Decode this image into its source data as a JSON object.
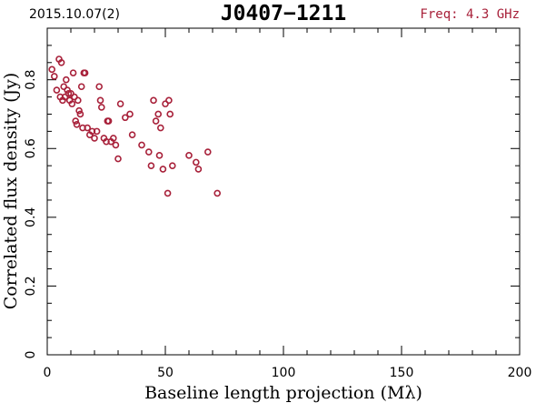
{
  "header": {
    "date": "2015.10.07(2)",
    "source": "J0407−1211",
    "freq": "Freq: 4.3 GHz"
  },
  "colors": {
    "points": "#a8213a",
    "freq_text": "#a8213a",
    "axes": "#000000"
  },
  "chart_data": {
    "type": "scatter",
    "xlabel": "Baseline length projection (Mλ)",
    "ylabel": "Correlated flux density (Jy)",
    "xlim": [
      0,
      200
    ],
    "ylim": [
      0,
      0.95
    ],
    "xticks": [
      0,
      50,
      100,
      150,
      200
    ],
    "xtick_labels": [
      "0",
      "50",
      "100",
      "150",
      "200"
    ],
    "yticks": [
      0,
      0.2,
      0.4,
      0.6,
      0.8
    ],
    "ytick_labels": [
      "0",
      "0.2",
      "0.4",
      "0.6",
      "0.8"
    ],
    "grid": false,
    "marker": "open-circle",
    "points": [
      [
        2,
        0.83
      ],
      [
        3,
        0.81
      ],
      [
        4,
        0.77
      ],
      [
        5,
        0.86
      ],
      [
        5.5,
        0.75
      ],
      [
        6,
        0.85
      ],
      [
        6.5,
        0.74
      ],
      [
        7,
        0.78
      ],
      [
        7.5,
        0.75
      ],
      [
        8,
        0.8
      ],
      [
        8.5,
        0.77
      ],
      [
        9,
        0.76
      ],
      [
        9.5,
        0.74
      ],
      [
        10,
        0.76
      ],
      [
        10.5,
        0.73
      ],
      [
        11,
        0.82
      ],
      [
        11.5,
        0.75
      ],
      [
        12,
        0.68
      ],
      [
        12.5,
        0.67
      ],
      [
        13,
        0.74
      ],
      [
        13.5,
        0.71
      ],
      [
        14,
        0.7
      ],
      [
        14.5,
        0.78
      ],
      [
        15,
        0.66
      ],
      [
        15.5,
        0.82
      ],
      [
        16,
        0.82
      ],
      [
        17,
        0.66
      ],
      [
        18,
        0.64
      ],
      [
        19,
        0.65
      ],
      [
        20,
        0.63
      ],
      [
        21,
        0.65
      ],
      [
        22,
        0.78
      ],
      [
        22.5,
        0.74
      ],
      [
        23,
        0.72
      ],
      [
        24,
        0.63
      ],
      [
        25,
        0.62
      ],
      [
        25.5,
        0.68
      ],
      [
        26,
        0.68
      ],
      [
        27,
        0.62
      ],
      [
        28,
        0.63
      ],
      [
        29,
        0.61
      ],
      [
        30,
        0.57
      ],
      [
        31,
        0.73
      ],
      [
        33,
        0.69
      ],
      [
        35,
        0.7
      ],
      [
        36,
        0.64
      ],
      [
        40,
        0.61
      ],
      [
        43,
        0.59
      ],
      [
        44,
        0.55
      ],
      [
        45,
        0.74
      ],
      [
        46,
        0.68
      ],
      [
        47,
        0.7
      ],
      [
        47.5,
        0.58
      ],
      [
        48,
        0.66
      ],
      [
        49,
        0.54
      ],
      [
        50,
        0.73
      ],
      [
        51,
        0.47
      ],
      [
        51.5,
        0.74
      ],
      [
        52,
        0.7
      ],
      [
        53,
        0.55
      ],
      [
        60,
        0.58
      ],
      [
        63,
        0.56
      ],
      [
        64,
        0.54
      ],
      [
        68,
        0.59
      ],
      [
        72,
        0.47
      ]
    ]
  }
}
